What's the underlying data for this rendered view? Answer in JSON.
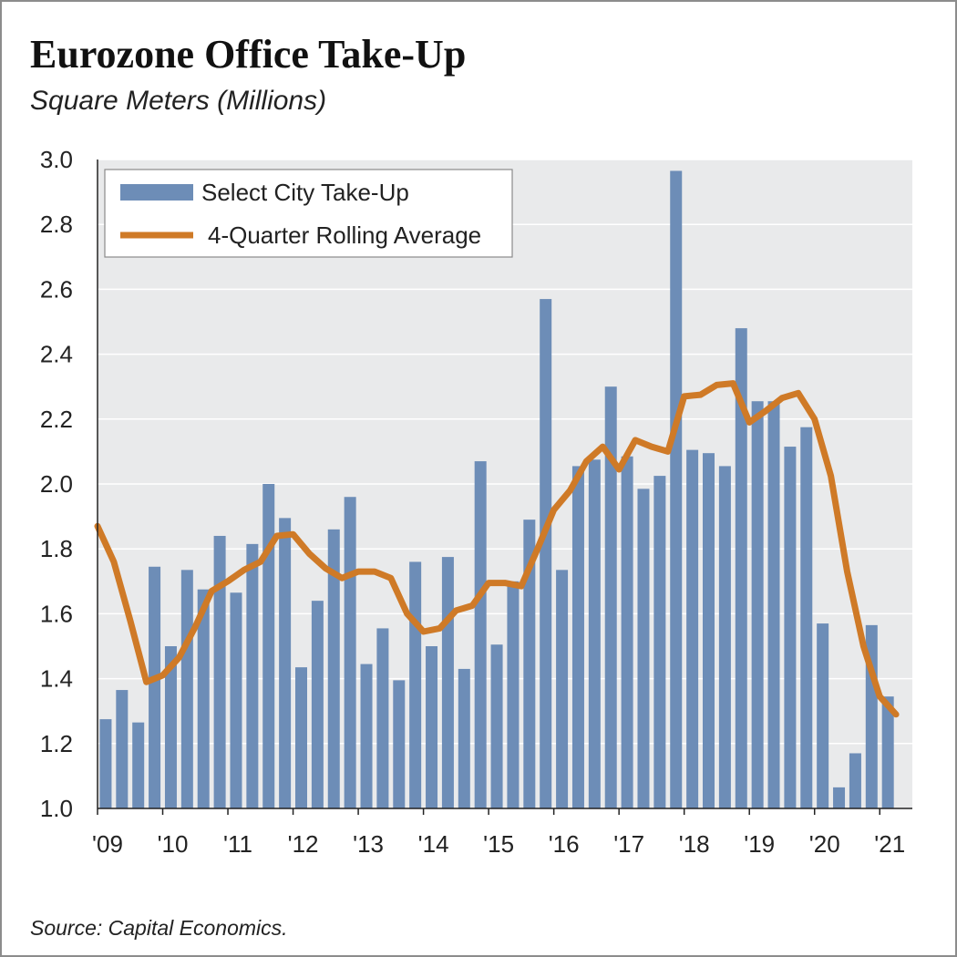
{
  "title": "Eurozone Office Take-Up",
  "subtitle": "Square Meters (Millions)",
  "source": "Source: Capital Economics.",
  "colors": {
    "bar": "#6d8db7",
    "line": "#cf7a27",
    "plot_bg": "#e9eaeb",
    "grid": "#ffffff"
  },
  "chart_data": {
    "type": "bar",
    "ylim": [
      1.0,
      3.0
    ],
    "grid": true,
    "legend_position": "top-left",
    "y_ticks": [
      "1.0",
      "1.2",
      "1.4",
      "1.6",
      "1.8",
      "2.0",
      "2.2",
      "2.4",
      "2.6",
      "2.8",
      "3.0"
    ],
    "x_ticks": [
      "'09",
      "'10",
      "'11",
      "'12",
      "'13",
      "'14",
      "'15",
      "'16",
      "'17",
      "'18",
      "'19",
      "'20",
      "'21"
    ],
    "series": [
      {
        "name": "Select City Take-Up",
        "type": "bar",
        "values": [
          1.275,
          1.365,
          1.265,
          1.745,
          1.5,
          1.735,
          1.675,
          1.84,
          1.665,
          1.815,
          2.0,
          1.895,
          1.435,
          1.64,
          1.86,
          1.96,
          1.445,
          1.555,
          1.395,
          1.76,
          1.5,
          1.775,
          1.43,
          2.07,
          1.505,
          1.7,
          1.89,
          2.57,
          1.735,
          2.055,
          2.075,
          2.3,
          2.085,
          1.985,
          2.025,
          2.965,
          2.105,
          2.095,
          2.055,
          2.48,
          2.255,
          2.255,
          2.115,
          2.175,
          1.57,
          1.065,
          1.17,
          1.565,
          1.345
        ]
      },
      {
        "name": "4-Quarter Rolling Average",
        "type": "line",
        "values": [
          1.87,
          1.76,
          1.58,
          1.39,
          1.41,
          1.465,
          1.56,
          1.67,
          1.7,
          1.735,
          1.76,
          1.84,
          1.845,
          1.785,
          1.74,
          1.71,
          1.73,
          1.73,
          1.71,
          1.6,
          1.545,
          1.555,
          1.61,
          1.625,
          1.695,
          1.695,
          1.685,
          1.8,
          1.92,
          1.98,
          2.07,
          2.115,
          2.045,
          2.135,
          2.115,
          2.1,
          2.27,
          2.275,
          2.305,
          2.31,
          2.19,
          2.225,
          2.265,
          2.28,
          2.2,
          2.025,
          1.73,
          1.5,
          1.345,
          1.29
        ]
      }
    ]
  }
}
